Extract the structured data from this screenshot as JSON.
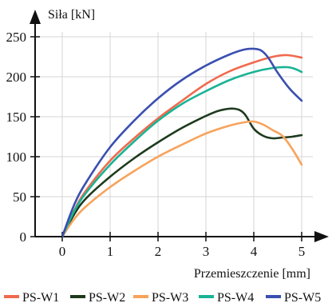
{
  "chart_data": {
    "type": "line",
    "title": "",
    "ylabel": "Siła [kN]",
    "xlabel": "Przemieszczenie [mm]",
    "xlim": [
      0,
      5
    ],
    "ylim": [
      0,
      250
    ],
    "xticks": [
      "0",
      "1",
      "2",
      "3",
      "4",
      "5"
    ],
    "yticks": [
      "0",
      "50",
      "100",
      "150",
      "200",
      "250"
    ],
    "xtick_values": [
      0,
      1,
      2,
      3,
      4,
      5
    ],
    "ytick_values": [
      0,
      50,
      100,
      150,
      200,
      250
    ],
    "grid": true,
    "legend_position": "bottom",
    "series": [
      {
        "name": "PS-W1",
        "color": "#f06a4e",
        "x": [
          0,
          0.25,
          0.5,
          1.0,
          1.5,
          2.0,
          2.5,
          3.0,
          3.5,
          4.0,
          4.4,
          4.7,
          5.0
        ],
        "y": [
          0,
          33,
          58,
          95,
          123,
          148,
          170,
          191,
          207,
          218,
          225,
          227,
          224
        ]
      },
      {
        "name": "PS-W2",
        "color": "#1e3a1e",
        "x": [
          0,
          0.25,
          0.5,
          1.0,
          1.5,
          2.0,
          2.5,
          3.0,
          3.3,
          3.6,
          3.8,
          4.0,
          4.2,
          4.4,
          4.6,
          4.8,
          5.0
        ],
        "y": [
          0,
          28,
          48,
          75,
          98,
          118,
          136,
          151,
          158,
          160,
          154,
          135,
          126,
          123,
          124,
          125,
          127
        ]
      },
      {
        "name": "PS-W3",
        "color": "#f7a35c",
        "x": [
          0,
          0.25,
          0.5,
          1.0,
          1.5,
          2.0,
          2.5,
          3.0,
          3.5,
          3.8,
          4.0,
          4.2,
          4.4,
          4.6,
          4.8,
          5.0
        ],
        "y": [
          0,
          22,
          38,
          62,
          82,
          100,
          115,
          129,
          139,
          143,
          144,
          140,
          133,
          126,
          110,
          90
        ]
      },
      {
        "name": "PS-W4",
        "color": "#1ab394",
        "x": [
          0,
          0.25,
          0.5,
          1.0,
          1.5,
          2.0,
          2.5,
          3.0,
          3.5,
          4.0,
          4.4,
          4.7,
          4.85,
          5.0
        ],
        "y": [
          0,
          32,
          55,
          90,
          119,
          145,
          166,
          182,
          196,
          206,
          211,
          212,
          210,
          206
        ]
      },
      {
        "name": "PS-W5",
        "color": "#3a4fb0",
        "x": [
          0,
          0.25,
          0.5,
          1.0,
          1.5,
          2.0,
          2.5,
          3.0,
          3.5,
          3.8,
          4.0,
          4.15,
          4.3,
          4.5,
          4.75,
          5.0
        ],
        "y": [
          0,
          40,
          68,
          112,
          145,
          173,
          196,
          214,
          228,
          234,
          235,
          233,
          224,
          205,
          185,
          170
        ]
      }
    ]
  }
}
